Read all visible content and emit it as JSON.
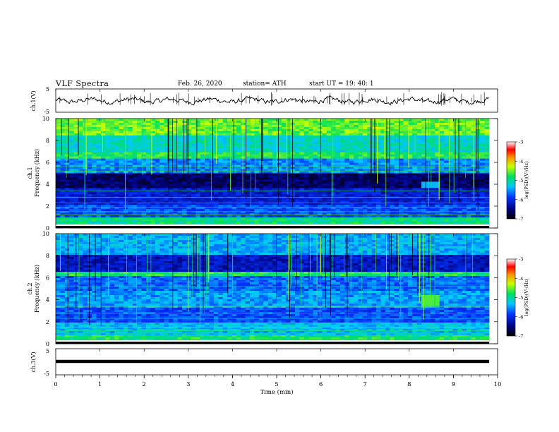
{
  "header": {
    "title": "VLF  Spectra",
    "date": "Feb. 26, 2020",
    "station": "station= ATH",
    "start": "start  UT  =    19: 40: 1"
  },
  "chart_data": [
    {
      "type": "line",
      "panel": "ch1-waveform",
      "ylabel": "ch.1(V)",
      "ylim": [
        -5,
        5
      ],
      "yticks": [
        "5",
        "-5"
      ],
      "xlim": [
        0,
        10
      ]
    },
    {
      "type": "heatmap",
      "panel": "ch1-spectrogram",
      "ylabel": "ch.1\nFrequency (kHz)",
      "ylim": [
        0,
        10
      ],
      "yticks": [
        "10",
        "8",
        "6",
        "4",
        "2",
        "0"
      ],
      "xlim": [
        0,
        10
      ],
      "colorbar": {
        "label": "log(PSD)(V²/Hz)",
        "ticks": [
          "-3",
          "-4",
          "-5",
          "-6",
          "-7"
        ],
        "range": [
          -7,
          -3
        ]
      }
    },
    {
      "type": "heatmap",
      "panel": "ch2-spectrogram",
      "ylabel": "ch.2\nFrequency (kHz)",
      "ylim": [
        0,
        10
      ],
      "yticks": [
        "10",
        "8",
        "6",
        "4",
        "2",
        "0"
      ],
      "xlim": [
        0,
        10
      ],
      "colorbar": {
        "label": "log(PSD)(V²/Hz)",
        "ticks": [
          "-3",
          "-4",
          "-5",
          "-6",
          "-7"
        ],
        "range": [
          -7,
          -3
        ]
      }
    },
    {
      "type": "line",
      "panel": "ch3-waveform",
      "ylabel": "ch.3(V)",
      "ylim": [
        -5,
        5
      ],
      "yticks": [
        "5",
        "-5"
      ],
      "xlim": [
        0,
        10
      ],
      "xlabel": "Time  (min)",
      "xticks": [
        "0",
        "1",
        "2",
        "3",
        "4",
        "5",
        "6",
        "7",
        "8",
        "9",
        "10"
      ]
    }
  ]
}
